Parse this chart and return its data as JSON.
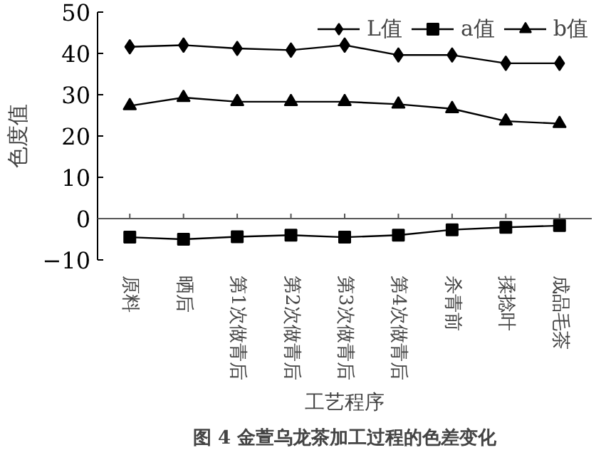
{
  "chart_data": {
    "type": "line",
    "title": "图 4 金萱乌龙茶加工过程的色差变化",
    "xlabel": "工艺程序",
    "ylabel": "色度值",
    "categories": [
      "原料",
      "晒后",
      "第1次做青后",
      "第2次做青后",
      "第3次做青后",
      "第4次做青后",
      "杀青前",
      "揉捻叶",
      "成品毛茶"
    ],
    "series": [
      {
        "name": "L值",
        "color": "#000000",
        "marker": "diamond",
        "values": [
          41.6,
          42.0,
          41.2,
          40.8,
          42.0,
          39.6,
          39.6,
          37.6,
          37.6
        ]
      },
      {
        "name": "a值",
        "color": "#000000",
        "marker": "square",
        "values": [
          -4.5,
          -5.0,
          -4.4,
          -4.0,
          -4.5,
          -4.0,
          -2.7,
          -2.1,
          -1.7
        ]
      },
      {
        "name": "b值",
        "color": "#000000",
        "marker": "triangle",
        "values": [
          27.3,
          29.3,
          28.3,
          28.3,
          28.3,
          27.7,
          26.6,
          23.6,
          23.0
        ]
      }
    ],
    "ylim": [
      -10,
      50
    ],
    "yticks": [
      -10,
      0,
      10,
      20,
      30,
      40,
      50
    ],
    "legend": "top right",
    "line_style": "solid"
  }
}
